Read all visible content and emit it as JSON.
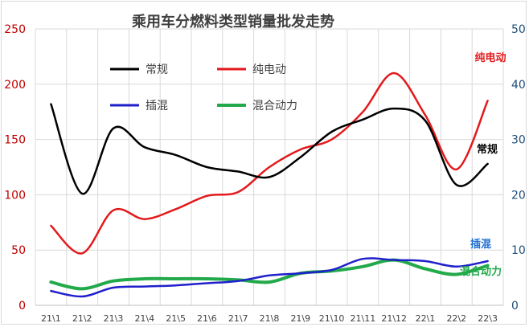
{
  "chart_data": {
    "type": "line",
    "title": "乘用车分燃料类型销量批发走势",
    "categories": [
      "21\\1",
      "21\\2",
      "21\\3",
      "21\\4",
      "21\\5",
      "21\\6",
      "21\\7",
      "21\\8",
      "21\\9",
      "21\\10",
      "21\\11",
      "21\\12",
      "22\\1",
      "22\\2",
      "22\\3"
    ],
    "y_left": {
      "lim": [
        0,
        250
      ],
      "ticks": [
        0,
        50,
        100,
        150,
        200,
        250
      ]
    },
    "y_right": {
      "lim": [
        0,
        50
      ],
      "ticks": [
        0,
        10,
        20,
        30,
        40,
        50
      ]
    },
    "grid": true,
    "legend": {
      "placement": "top-left"
    },
    "series": [
      {
        "name": "常规",
        "axis": "left",
        "color": "#000000",
        "values": [
          182,
          101,
          160,
          143,
          136,
          125,
          121,
          116,
          134,
          157,
          168,
          178,
          167,
          109,
          128
        ],
        "end_label": "常规"
      },
      {
        "name": "纯电动",
        "axis": "right",
        "color": "#e31a1c",
        "values": [
          14.4,
          9.4,
          17.2,
          15.6,
          17.4,
          19.8,
          20.5,
          25.0,
          28.2,
          30.0,
          35.0,
          42.0,
          34.4,
          24.6,
          37.0
        ],
        "end_label": "纯电动"
      },
      {
        "name": "插混",
        "axis": "right",
        "color": "#1f1fcc",
        "values": [
          2.6,
          1.6,
          3.2,
          3.4,
          3.6,
          4.0,
          4.4,
          5.4,
          5.8,
          6.4,
          8.4,
          8.2,
          8.0,
          7.0,
          8.0
        ],
        "end_label": "插混"
      },
      {
        "name": "混合动力",
        "axis": "right",
        "color": "#22a94a",
        "values": [
          4.2,
          3.0,
          4.4,
          4.8,
          4.8,
          4.8,
          4.6,
          4.2,
          5.8,
          6.2,
          7.0,
          8.2,
          6.6,
          5.6,
          7.2
        ],
        "end_label": "混合动力"
      }
    ]
  }
}
